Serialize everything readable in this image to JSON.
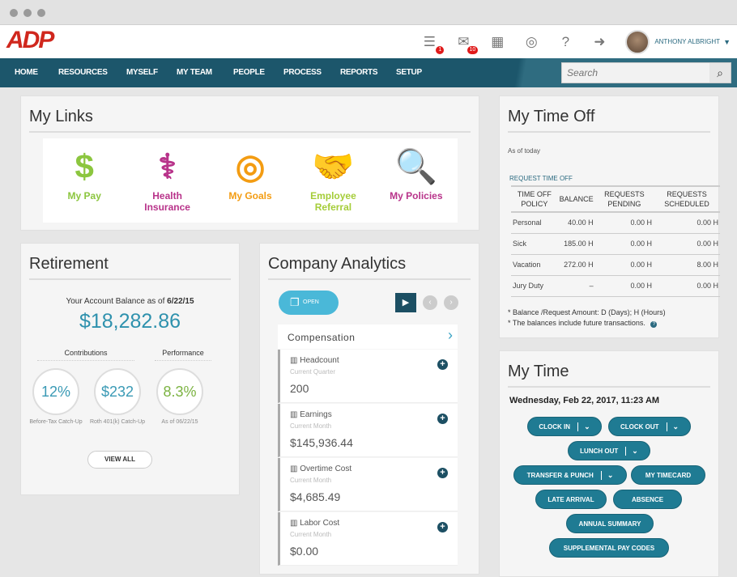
{
  "header": {
    "logo": "ADP",
    "user_name": "ANTHONY ALBRIGHT",
    "icons": [
      {
        "name": "task-list-icon",
        "glyph": "☰",
        "badge": "1"
      },
      {
        "name": "mail-icon",
        "glyph": "✉",
        "badge": "10"
      },
      {
        "name": "calendar-icon",
        "glyph": "▦",
        "badge": ""
      },
      {
        "name": "chat-icon",
        "glyph": "◎",
        "badge": ""
      },
      {
        "name": "help-icon",
        "glyph": "?",
        "badge": ""
      },
      {
        "name": "logout-icon",
        "glyph": "➜",
        "badge": ""
      }
    ]
  },
  "nav": {
    "items": [
      "HOME",
      "RESOURCES",
      "MYSELF",
      "MY TEAM",
      "PEOPLE",
      "PROCESS",
      "REPORTS",
      "SETUP"
    ],
    "search_placeholder": "Search"
  },
  "my_links": {
    "title": "My Links",
    "items": [
      {
        "label": "My Pay",
        "icon": "dollar-icon",
        "glyph": "$",
        "color": "#8cc63f"
      },
      {
        "label": "Health Insurance",
        "icon": "caduceus-icon",
        "glyph": "⚕",
        "color": "#b8338a"
      },
      {
        "label": "My Goals",
        "icon": "target-icon",
        "glyph": "◎",
        "color": "#f39c12"
      },
      {
        "label": "Employee Referral",
        "icon": "handshake-icon",
        "glyph": "🤝",
        "color": "#a5cd39"
      },
      {
        "label": "My Policies",
        "icon": "magnify-eye-icon",
        "glyph": "🔍",
        "color": "#b8338a"
      }
    ]
  },
  "retirement": {
    "title": "Retirement",
    "balance_label": "Your Account Balance as of",
    "balance_date": "6/22/15",
    "balance": "$18,282.86",
    "contributions_label": "Contributions",
    "performance_label": "Performance",
    "circles": [
      {
        "value": "12%",
        "caption": "Before-Tax Catch-Up",
        "color": "#3a9ab5"
      },
      {
        "value": "$232",
        "caption": "Roth 401(k) Catch-Up",
        "color": "#3a9ab5"
      },
      {
        "value": "8.3%",
        "caption": "As of 06/22/15",
        "color": "#7cb342"
      }
    ],
    "view_all": "VIEW ALL"
  },
  "analytics": {
    "title": "Company Analytics",
    "open_label": "OPEN",
    "section": "Compensation",
    "cards": [
      {
        "title": "Headcount",
        "period": "Current Quarter",
        "value": "200"
      },
      {
        "title": "Earnings",
        "period": "Current Month",
        "value": "$145,936.44"
      },
      {
        "title": "Overtime Cost",
        "period": "Current Month",
        "value": "$4,685.49"
      },
      {
        "title": "Labor Cost",
        "period": "Current Month",
        "value": "$0.00"
      }
    ]
  },
  "time_off": {
    "title": "My Time Off",
    "as_of": "As of today",
    "request_link": "REQUEST TIME OFF",
    "columns": [
      "TIME OFF POLICY",
      "BALANCE",
      "REQUESTS PENDING",
      "REQUESTS SCHEDULED"
    ],
    "rows": [
      [
        "Personal",
        "40.00 H",
        "0.00 H",
        "0.00 H"
      ],
      [
        "Sick",
        "185.00 H",
        "0.00 H",
        "0.00 H"
      ],
      [
        "Vacation",
        "272.00 H",
        "0.00 H",
        "8.00 H"
      ],
      [
        "Jury Duty",
        "–",
        "0.00 H",
        "0.00 H"
      ]
    ],
    "note1": "* Balance /Request Amount: D (Days); H (Hours)",
    "note2": "* The balances include future transactions."
  },
  "my_time": {
    "title": "My Time",
    "datetime": "Wednesday, Feb 22, 2017, 11:23 AM",
    "buttons": {
      "clock_in": "CLOCK IN",
      "clock_out": "CLOCK OUT",
      "lunch_out": "LUNCH OUT",
      "transfer_punch": "TRANSFER & PUNCH",
      "my_timecard": "MY TIMECARD",
      "late_arrival": "LATE ARRIVAL",
      "absence": "ABSENCE",
      "annual_summary": "ANNUAL SUMMARY",
      "supplemental": "SUPPLEMENTAL PAY CODES"
    }
  }
}
